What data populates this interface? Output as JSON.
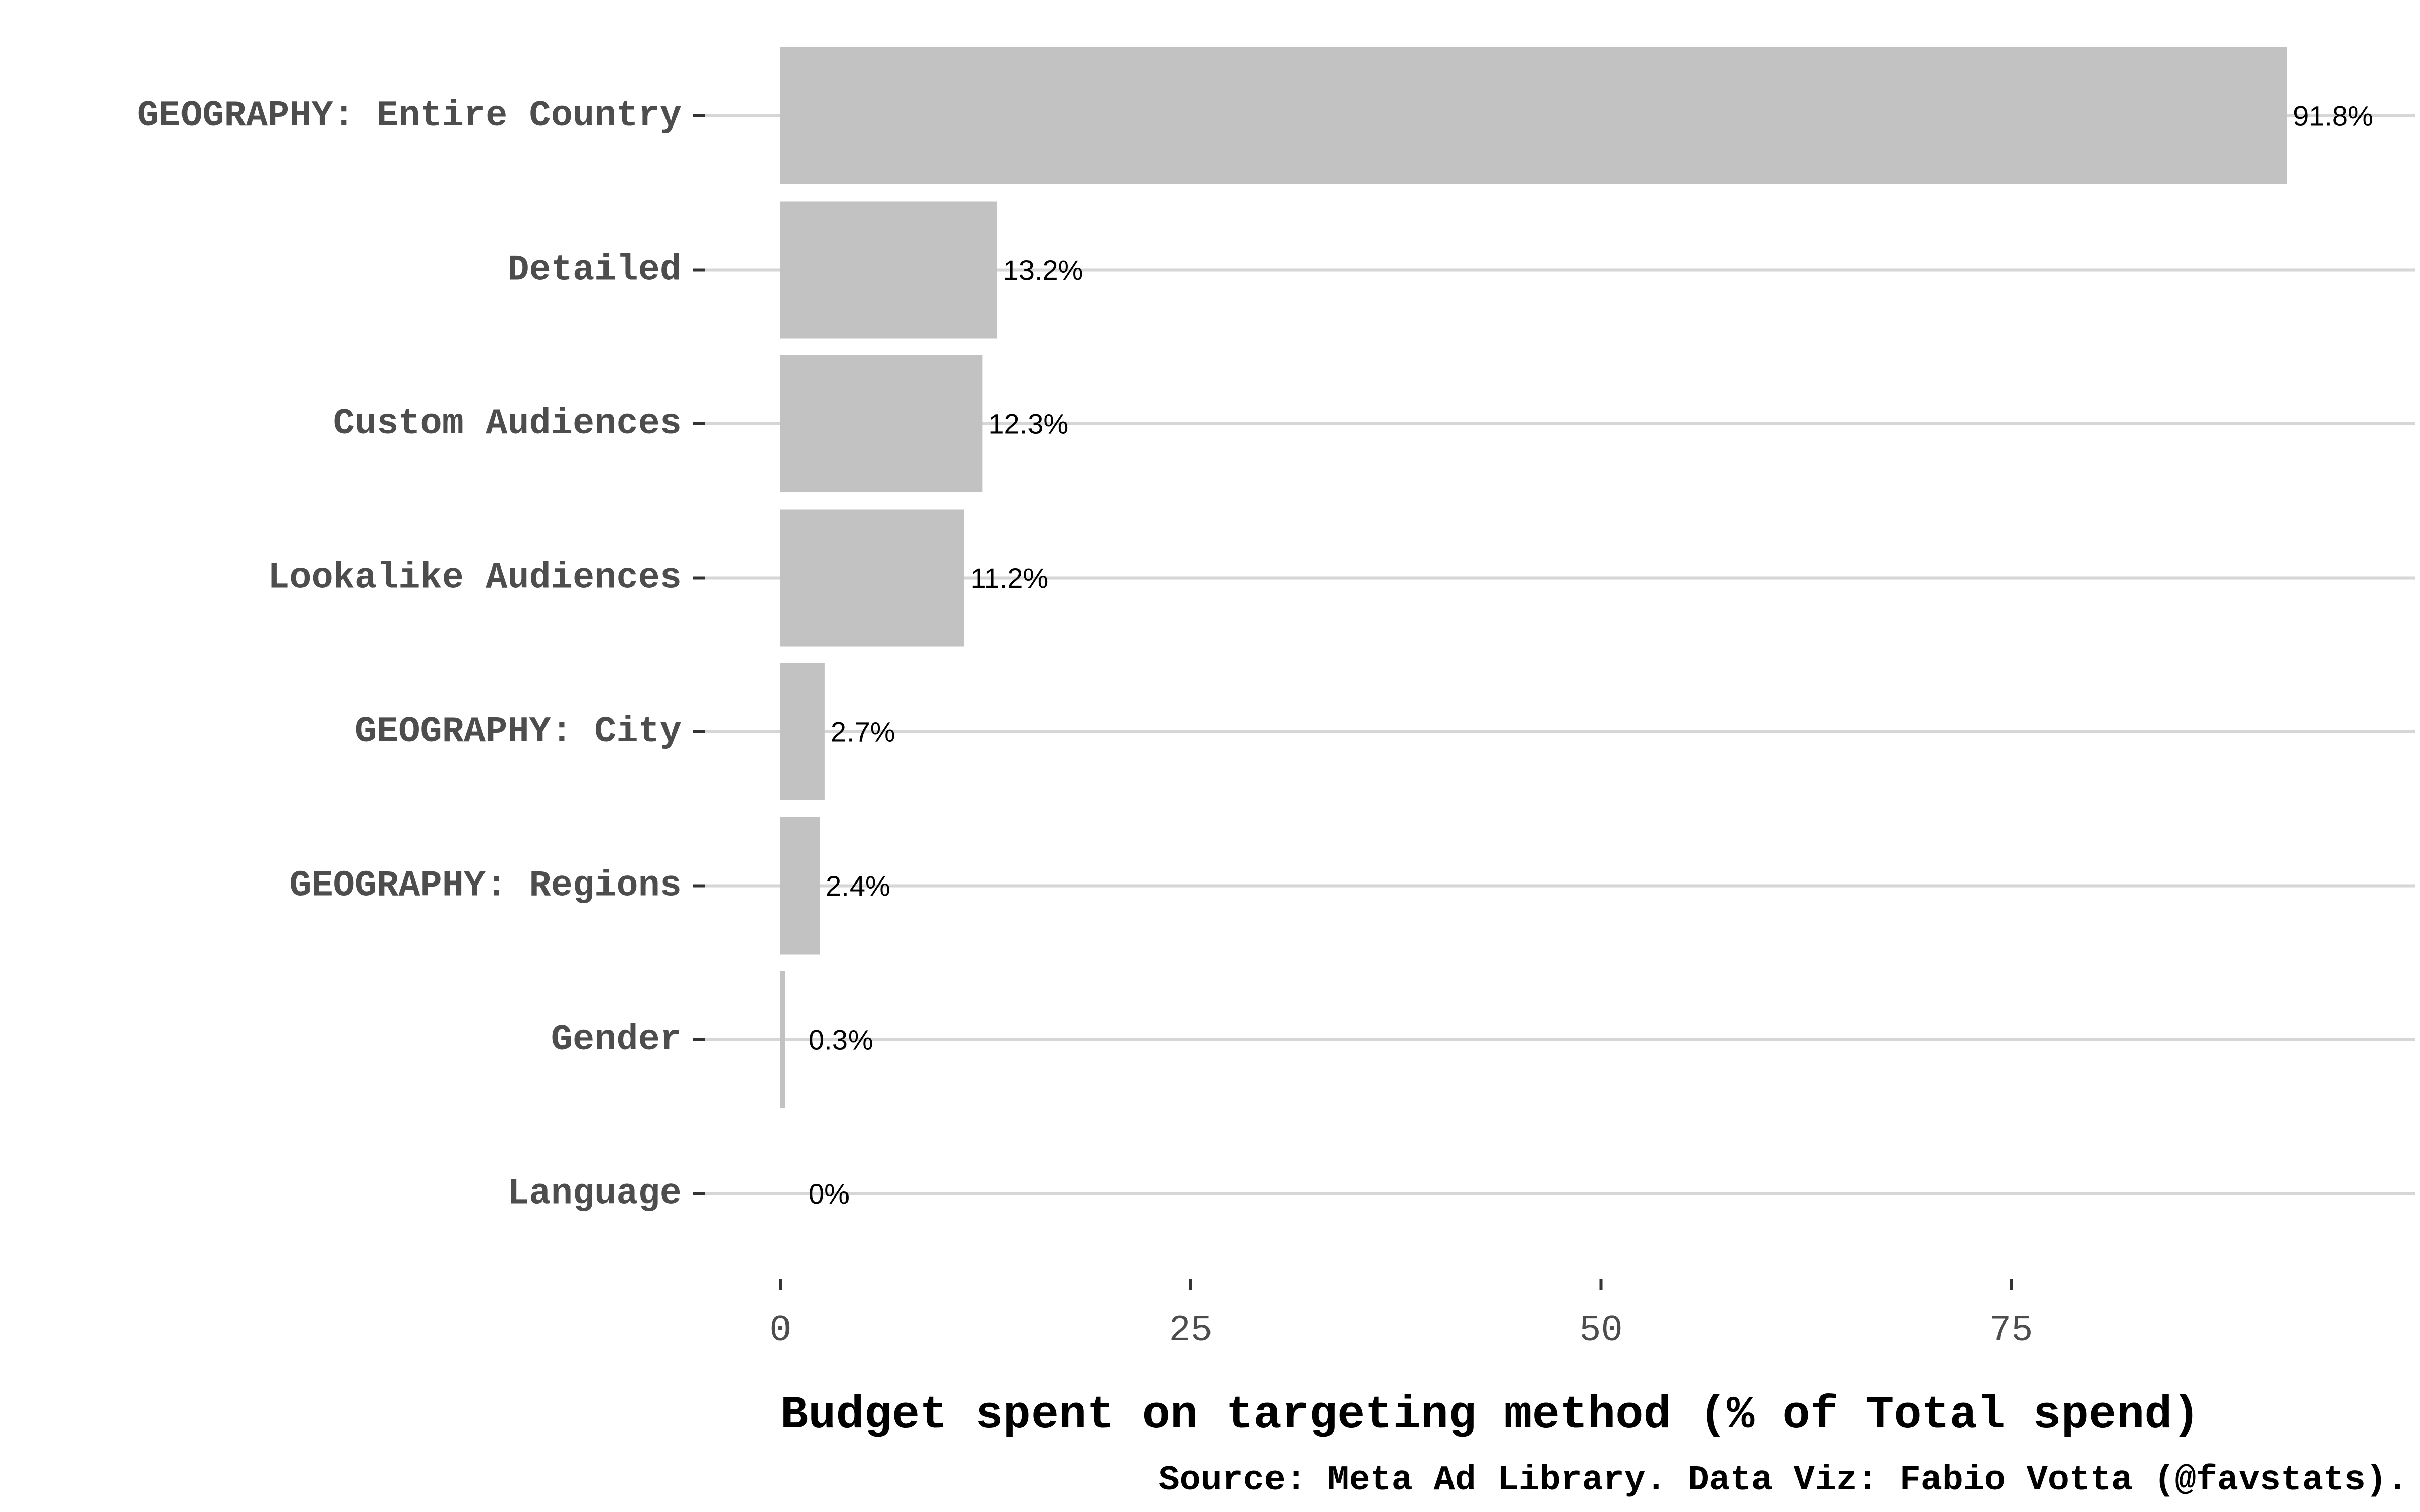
{
  "chart_data": {
    "type": "bar",
    "orientation": "horizontal",
    "categories": [
      "GEOGRAPHY: Entire Country",
      "Detailed",
      "Custom Audiences",
      "Lookalike Audiences",
      "GEOGRAPHY: City",
      "GEOGRAPHY: Regions",
      "Gender",
      "Language"
    ],
    "values": [
      91.8,
      13.2,
      12.3,
      11.2,
      2.7,
      2.4,
      0.3,
      0
    ],
    "data_labels": [
      "91.8%",
      "13.2%",
      "12.3%",
      "11.2%",
      "2.7%",
      "2.4%",
      "0.3%",
      "0%"
    ],
    "x_ticks": [
      0,
      25,
      50,
      75
    ],
    "x_tick_labels": [
      "0",
      "25",
      "50",
      "75"
    ],
    "xlim": [
      0,
      100
    ],
    "xlabel": "Budget spent on targeting method (% of Total spend)",
    "caption": "Source: Meta Ad Library. Data Viz: Fabio Votta (@favstats).",
    "grid": "horizontal major gridlines",
    "legend": "none",
    "colors": {
      "bar": "#c2c2c2",
      "grid": "#d6d6d6",
      "axis_text": "#4d4d4d",
      "title_text": "#000000"
    }
  }
}
